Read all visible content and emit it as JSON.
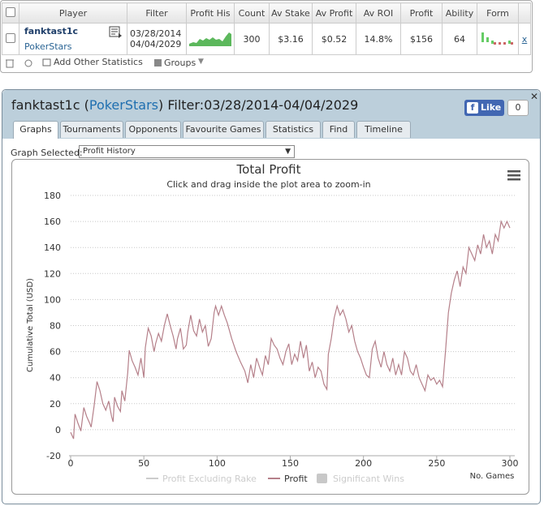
{
  "table": {
    "columns": [
      "Player",
      "Filter",
      "Profit His",
      "Count",
      "Av Stake",
      "Av Profit",
      "Av ROI",
      "Profit",
      "Ability",
      "Form"
    ],
    "row": {
      "player": "fanktast1c",
      "site": "PokerStars",
      "filter_from": "03/28/2014",
      "filter_to": "04/04/2029",
      "count": "300",
      "av_stake": "$3.16",
      "av_profit": "$0.52",
      "av_roi": "14.8%",
      "profit": "$156",
      "ability": "64",
      "remove": "x"
    }
  },
  "toolbar": {
    "add": "Add Other Statistics",
    "groups": "Groups"
  },
  "panel": {
    "title_name": "fanktast1c",
    "title_open": "(",
    "title_site": "PokerStars",
    "title_close": ")",
    "title_filter": "Filter:03/28/2014-04/04/2029",
    "like": "Like",
    "like_count": "0",
    "tabs": [
      "Graphs",
      "Tournaments",
      "Opponents",
      "Favourite Games",
      "Statistics",
      "Find",
      "Timeline"
    ],
    "graph_label": "Graph Selected:",
    "graph_selected": "Profit History"
  },
  "chart_data": {
    "type": "line",
    "title": "Total Profit",
    "subtitle": "Click and drag inside the plot area to zoom-in",
    "ylabel": "Cumulative Total (USD)",
    "xlabel": "No. Games",
    "xlim": [
      0,
      300
    ],
    "ylim": [
      -20,
      180
    ],
    "xticks": [
      0,
      50,
      100,
      150,
      200,
      250,
      300
    ],
    "yticks": [
      -20,
      0,
      20,
      40,
      60,
      80,
      100,
      120,
      140,
      160,
      180
    ],
    "grid": true,
    "x": [
      0,
      2,
      3,
      5,
      7,
      9,
      11,
      13,
      14,
      16,
      18,
      20,
      22,
      24,
      26,
      28,
      29,
      30,
      32,
      34,
      35,
      37,
      39,
      40,
      42,
      44,
      46,
      48,
      50,
      51,
      53,
      55,
      57,
      58,
      60,
      62,
      64,
      66,
      68,
      70,
      72,
      73,
      75,
      77,
      79,
      80,
      82,
      84,
      86,
      88,
      90,
      92,
      94,
      96,
      98,
      99,
      101,
      103,
      105,
      107,
      110,
      113,
      116,
      119,
      121,
      123,
      125,
      127,
      129,
      131,
      133,
      135,
      137,
      139,
      141,
      143,
      145,
      147,
      149,
      151,
      153,
      155,
      157,
      159,
      161,
      163,
      165,
      167,
      169,
      171,
      173,
      175,
      176,
      178,
      180,
      182,
      184,
      186,
      188,
      190,
      192,
      194,
      196,
      198,
      200,
      202,
      204,
      206,
      208,
      210,
      212,
      214,
      216,
      218,
      220,
      222,
      224,
      226,
      228,
      230,
      232,
      234,
      236,
      238,
      240,
      242,
      244,
      246,
      248,
      250,
      252,
      254,
      256,
      258,
      260,
      262,
      264,
      266,
      268,
      270,
      272,
      274,
      276,
      278,
      280,
      282,
      284,
      286,
      288,
      290,
      292,
      294,
      296,
      298,
      300
    ],
    "series": [
      {
        "name": "Profit Excluding Rake",
        "color": "#cccccc",
        "visible": false
      },
      {
        "name": "Profit",
        "color": "#b5808a",
        "visible": true,
        "values": [
          -2,
          -7,
          12,
          5,
          -1,
          17,
          10,
          5,
          2,
          18,
          37,
          30,
          20,
          15,
          22,
          10,
          6,
          25,
          18,
          14,
          30,
          22,
          44,
          61,
          53,
          48,
          42,
          55,
          40,
          63,
          78,
          72,
          60,
          66,
          74,
          68,
          80,
          89,
          80,
          72,
          62,
          70,
          78,
          62,
          65,
          75,
          88,
          76,
          72,
          85,
          75,
          80,
          64,
          70,
          90,
          95,
          88,
          95,
          88,
          82,
          70,
          60,
          52,
          45,
          36,
          50,
          40,
          55,
          48,
          42,
          57,
          50,
          70,
          65,
          62,
          55,
          50,
          60,
          66,
          50,
          58,
          53,
          68,
          55,
          65,
          45,
          52,
          40,
          48,
          45,
          35,
          31,
          58,
          70,
          86,
          95,
          88,
          92,
          85,
          75,
          80,
          68,
          60,
          55,
          48,
          42,
          40,
          62,
          68,
          55,
          48,
          60,
          50,
          45,
          55,
          42,
          50,
          42,
          60,
          55,
          45,
          42,
          50,
          40,
          35,
          30,
          42,
          38,
          40,
          35,
          38,
          33,
          60,
          90,
          105,
          115,
          122,
          110,
          125,
          120,
          140,
          135,
          130,
          142,
          135,
          150,
          140,
          145,
          135,
          150,
          145,
          160,
          155,
          160,
          155
        ]
      },
      {
        "name": "Significant Wins",
        "color": "#c8c8c8",
        "visible": false,
        "marker": "box"
      }
    ]
  }
}
